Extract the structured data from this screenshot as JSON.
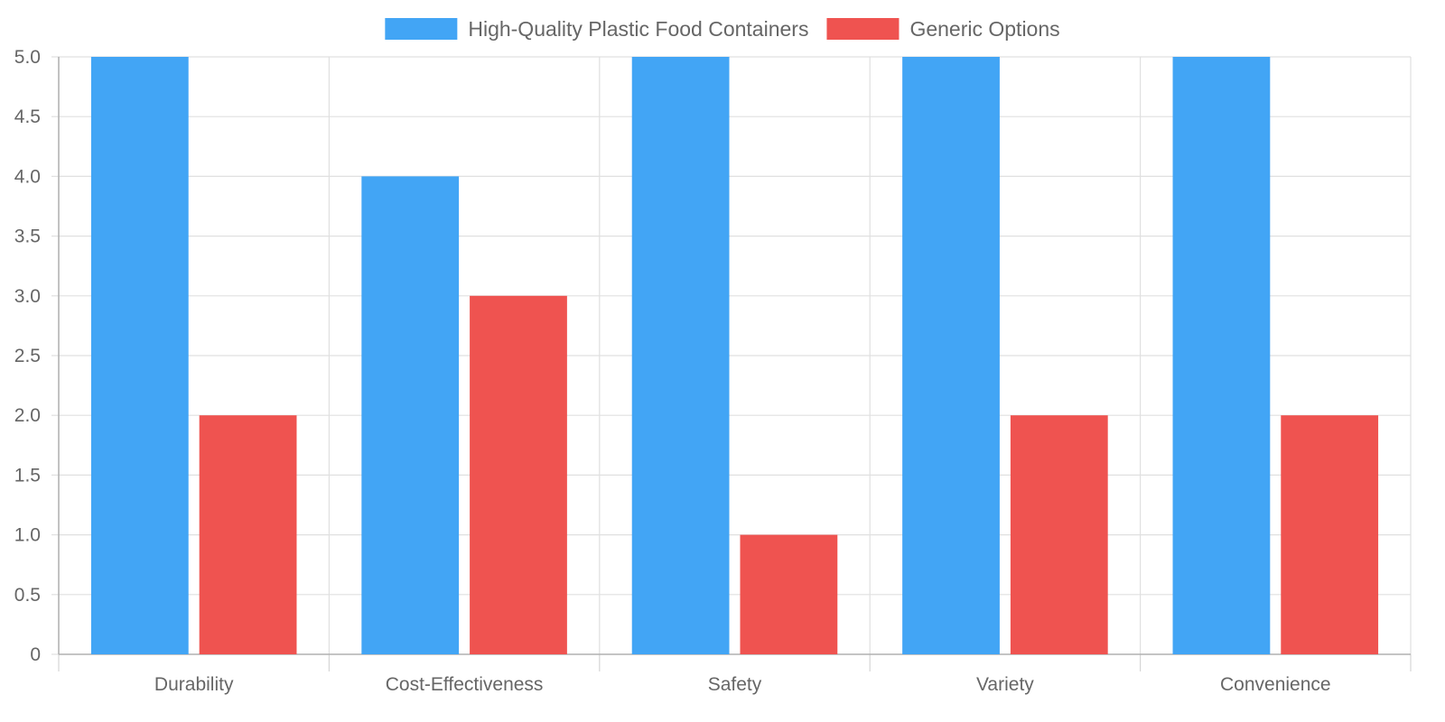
{
  "chart_data": {
    "type": "bar",
    "categories": [
      "Durability",
      "Cost-Effectiveness",
      "Safety",
      "Variety",
      "Convenience"
    ],
    "series": [
      {
        "name": "High-Quality Plastic Food Containers",
        "values": [
          5,
          4,
          5,
          5,
          5
        ],
        "color": "#42a5f5"
      },
      {
        "name": "Generic Options",
        "values": [
          2,
          3,
          1,
          2,
          2
        ],
        "color": "#ef5350"
      }
    ],
    "ylim": [
      0,
      5
    ],
    "yticks": [
      "0",
      "0.5",
      "1.0",
      "1.5",
      "2.0",
      "2.5",
      "3.0",
      "3.5",
      "4.0",
      "4.5",
      "5.0"
    ],
    "ytick_values": [
      0,
      0.5,
      1,
      1.5,
      2,
      2.5,
      3,
      3.5,
      4,
      4.5,
      5
    ],
    "grid": true,
    "legend_position": "top-center",
    "title": "",
    "xlabel": "",
    "ylabel": ""
  }
}
